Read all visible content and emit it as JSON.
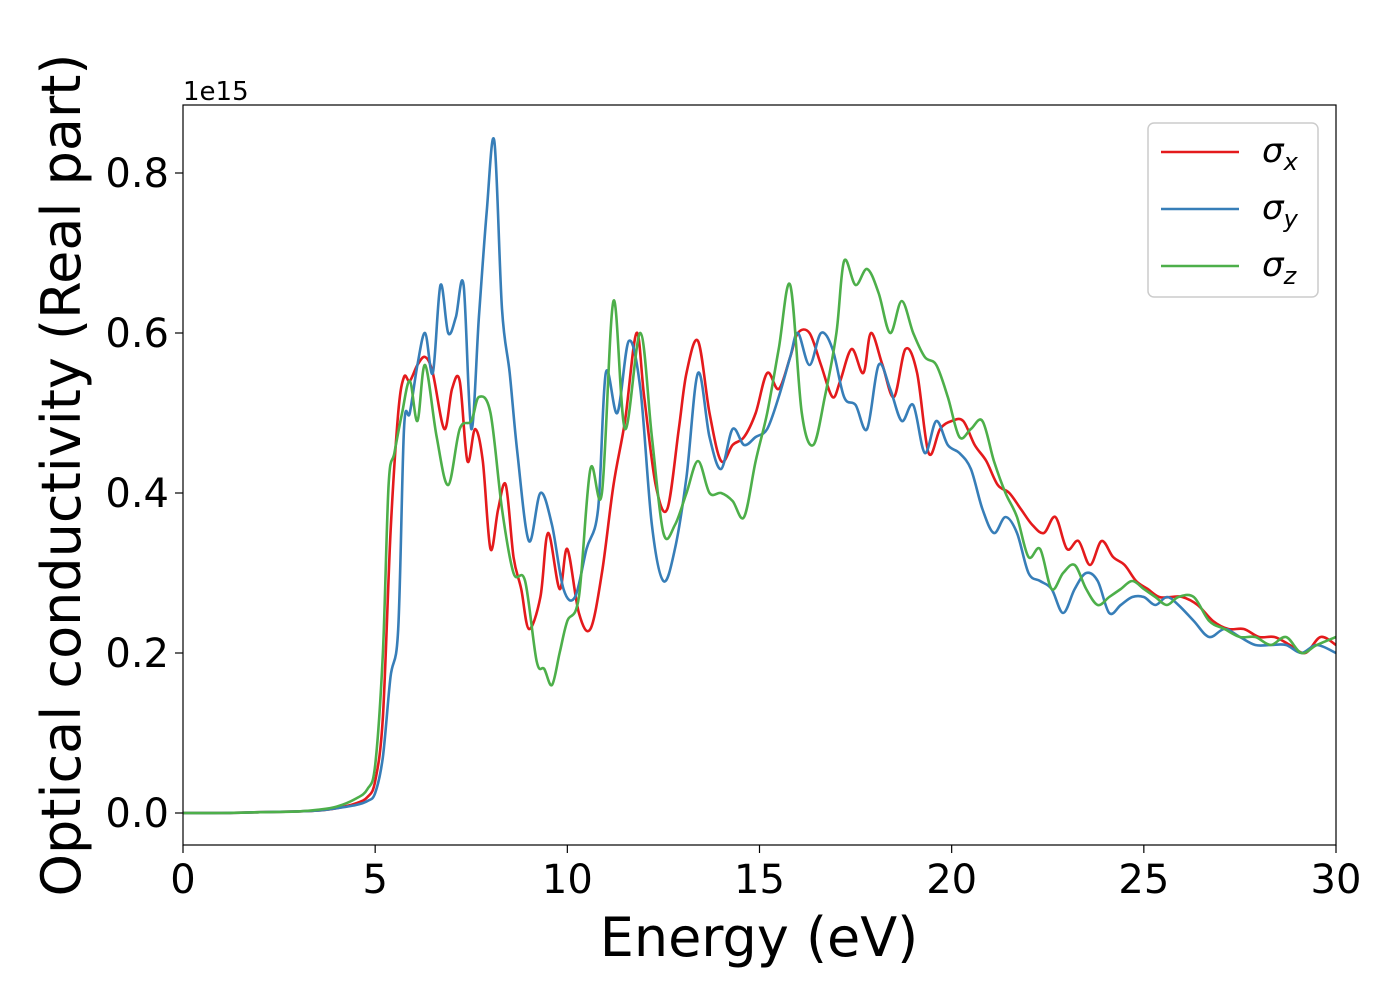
{
  "chart_data": {
    "type": "line",
    "title": "",
    "xlabel": "Energy (eV)",
    "ylabel": "Optical conductivity (Real part)",
    "offset_text": "1e15",
    "xlim": [
      0,
      30
    ],
    "ylim": [
      -0.04,
      0.885
    ],
    "x_ticks": [
      0,
      5,
      10,
      15,
      20,
      25,
      30
    ],
    "x_tick_labels": [
      "0",
      "5",
      "10",
      "15",
      "20",
      "25",
      "30"
    ],
    "y_ticks": [
      0.0,
      0.2,
      0.4,
      0.6,
      0.8
    ],
    "y_tick_labels": [
      "0.0",
      "0.2",
      "0.4",
      "0.6",
      "0.8"
    ],
    "grid": false,
    "legend_position": "top-right",
    "series": [
      {
        "name": "σx",
        "legend_base": "σ",
        "legend_sub": "x",
        "color": "#e41a1c",
        "x": [
          0,
          1,
          2,
          3,
          3.5,
          4,
          4.5,
          4.8,
          5.0,
          5.2,
          5.4,
          5.6,
          5.75,
          5.9,
          6.1,
          6.3,
          6.5,
          6.8,
          7.0,
          7.2,
          7.4,
          7.6,
          7.8,
          8.0,
          8.2,
          8.4,
          8.6,
          8.8,
          9.0,
          9.3,
          9.5,
          9.8,
          10.0,
          10.3,
          10.6,
          10.9,
          11.2,
          11.5,
          11.8,
          12.0,
          12.3,
          12.6,
          12.9,
          13.1,
          13.4,
          13.7,
          14.0,
          14.3,
          14.6,
          14.9,
          15.2,
          15.5,
          15.8,
          16.0,
          16.3,
          16.6,
          16.9,
          17.1,
          17.4,
          17.7,
          17.9,
          18.2,
          18.5,
          18.8,
          19.1,
          19.4,
          19.7,
          20.0,
          20.3,
          20.6,
          20.9,
          21.2,
          21.5,
          21.8,
          22.1,
          22.4,
          22.7,
          23.0,
          23.3,
          23.6,
          23.9,
          24.2,
          24.5,
          24.8,
          25.1,
          25.4,
          25.7,
          26.0,
          26.4,
          26.8,
          27.2,
          27.6,
          28.0,
          28.4,
          28.8,
          29.2,
          29.6,
          30.0
        ],
        "y": [
          0.0,
          0.0,
          0.001,
          0.002,
          0.003,
          0.006,
          0.012,
          0.02,
          0.04,
          0.12,
          0.35,
          0.5,
          0.545,
          0.54,
          0.56,
          0.57,
          0.55,
          0.48,
          0.53,
          0.54,
          0.44,
          0.48,
          0.44,
          0.33,
          0.38,
          0.41,
          0.32,
          0.28,
          0.23,
          0.27,
          0.35,
          0.28,
          0.33,
          0.25,
          0.23,
          0.3,
          0.41,
          0.49,
          0.6,
          0.52,
          0.41,
          0.38,
          0.48,
          0.55,
          0.59,
          0.5,
          0.44,
          0.46,
          0.47,
          0.5,
          0.55,
          0.53,
          0.57,
          0.6,
          0.6,
          0.56,
          0.52,
          0.54,
          0.58,
          0.55,
          0.6,
          0.56,
          0.52,
          0.58,
          0.55,
          0.45,
          0.48,
          0.49,
          0.49,
          0.46,
          0.44,
          0.41,
          0.4,
          0.38,
          0.36,
          0.35,
          0.37,
          0.33,
          0.34,
          0.31,
          0.34,
          0.32,
          0.31,
          0.29,
          0.28,
          0.27,
          0.27,
          0.27,
          0.26,
          0.24,
          0.23,
          0.23,
          0.22,
          0.22,
          0.21,
          0.2,
          0.22,
          0.21
        ]
      },
      {
        "name": "σy",
        "legend_base": "σ",
        "legend_sub": "y",
        "color": "#377eb8",
        "x": [
          0,
          1,
          2,
          3,
          3.5,
          4,
          4.5,
          4.8,
          5.0,
          5.2,
          5.4,
          5.6,
          5.75,
          5.9,
          6.1,
          6.3,
          6.5,
          6.7,
          6.9,
          7.1,
          7.3,
          7.5,
          7.7,
          7.9,
          8.1,
          8.3,
          8.5,
          8.7,
          9.0,
          9.3,
          9.6,
          9.9,
          10.2,
          10.5,
          10.8,
          11.0,
          11.3,
          11.6,
          11.9,
          12.2,
          12.5,
          12.8,
          13.1,
          13.4,
          13.7,
          14.0,
          14.3,
          14.6,
          14.9,
          15.2,
          15.5,
          15.8,
          16.0,
          16.3,
          16.6,
          16.9,
          17.2,
          17.5,
          17.8,
          18.1,
          18.4,
          18.7,
          19.0,
          19.3,
          19.6,
          19.9,
          20.2,
          20.5,
          20.8,
          21.1,
          21.4,
          21.7,
          22.0,
          22.3,
          22.6,
          22.9,
          23.2,
          23.5,
          23.8,
          24.1,
          24.4,
          24.7,
          25.0,
          25.3,
          25.6,
          25.9,
          26.3,
          26.7,
          27.1,
          27.5,
          27.9,
          28.3,
          28.7,
          29.1,
          29.5,
          30.0
        ],
        "y": [
          0.0,
          0.0,
          0.001,
          0.002,
          0.003,
          0.006,
          0.01,
          0.015,
          0.025,
          0.07,
          0.17,
          0.23,
          0.48,
          0.5,
          0.56,
          0.6,
          0.55,
          0.66,
          0.6,
          0.62,
          0.66,
          0.48,
          0.62,
          0.75,
          0.84,
          0.63,
          0.55,
          0.45,
          0.34,
          0.4,
          0.36,
          0.28,
          0.27,
          0.33,
          0.38,
          0.55,
          0.5,
          0.59,
          0.53,
          0.36,
          0.29,
          0.33,
          0.42,
          0.55,
          0.47,
          0.43,
          0.48,
          0.46,
          0.47,
          0.48,
          0.52,
          0.57,
          0.6,
          0.56,
          0.6,
          0.58,
          0.52,
          0.51,
          0.48,
          0.56,
          0.53,
          0.49,
          0.51,
          0.45,
          0.49,
          0.46,
          0.45,
          0.43,
          0.38,
          0.35,
          0.37,
          0.35,
          0.3,
          0.29,
          0.28,
          0.25,
          0.28,
          0.3,
          0.29,
          0.25,
          0.26,
          0.27,
          0.27,
          0.26,
          0.27,
          0.26,
          0.24,
          0.22,
          0.23,
          0.22,
          0.21,
          0.21,
          0.21,
          0.2,
          0.21,
          0.2
        ]
      },
      {
        "name": "σz",
        "legend_base": "σ",
        "legend_sub": "z",
        "color": "#4daf4a",
        "x": [
          0,
          1,
          2,
          3,
          3.5,
          4,
          4.5,
          4.8,
          5.0,
          5.2,
          5.35,
          5.5,
          5.7,
          5.9,
          6.1,
          6.3,
          6.6,
          6.9,
          7.2,
          7.5,
          7.7,
          8.0,
          8.3,
          8.6,
          8.9,
          9.2,
          9.4,
          9.6,
          9.8,
          10.0,
          10.3,
          10.6,
          10.9,
          11.2,
          11.5,
          11.9,
          12.2,
          12.5,
          12.8,
          13.1,
          13.4,
          13.7,
          14.0,
          14.3,
          14.6,
          14.9,
          15.2,
          15.5,
          15.8,
          16.1,
          16.4,
          16.7,
          17.0,
          17.2,
          17.5,
          17.8,
          18.1,
          18.4,
          18.7,
          19.0,
          19.3,
          19.6,
          19.9,
          20.2,
          20.5,
          20.8,
          21.1,
          21.4,
          21.7,
          22.0,
          22.3,
          22.6,
          22.9,
          23.2,
          23.5,
          23.8,
          24.1,
          24.4,
          24.7,
          25.0,
          25.3,
          25.6,
          25.9,
          26.3,
          26.7,
          27.1,
          27.5,
          27.9,
          28.3,
          28.7,
          29.1,
          29.5,
          30.0
        ],
        "y": [
          0.0,
          0.0,
          0.001,
          0.002,
          0.004,
          0.008,
          0.018,
          0.03,
          0.06,
          0.2,
          0.41,
          0.45,
          0.5,
          0.54,
          0.49,
          0.56,
          0.47,
          0.41,
          0.48,
          0.49,
          0.52,
          0.5,
          0.38,
          0.3,
          0.29,
          0.19,
          0.18,
          0.16,
          0.2,
          0.24,
          0.27,
          0.43,
          0.4,
          0.64,
          0.48,
          0.6,
          0.47,
          0.35,
          0.36,
          0.4,
          0.44,
          0.4,
          0.4,
          0.39,
          0.37,
          0.44,
          0.5,
          0.58,
          0.66,
          0.5,
          0.46,
          0.52,
          0.6,
          0.69,
          0.66,
          0.68,
          0.65,
          0.6,
          0.64,
          0.6,
          0.57,
          0.56,
          0.52,
          0.47,
          0.48,
          0.49,
          0.44,
          0.4,
          0.37,
          0.32,
          0.33,
          0.28,
          0.3,
          0.31,
          0.28,
          0.26,
          0.27,
          0.28,
          0.29,
          0.28,
          0.27,
          0.26,
          0.27,
          0.27,
          0.24,
          0.23,
          0.22,
          0.22,
          0.21,
          0.22,
          0.2,
          0.21,
          0.22
        ]
      }
    ]
  }
}
